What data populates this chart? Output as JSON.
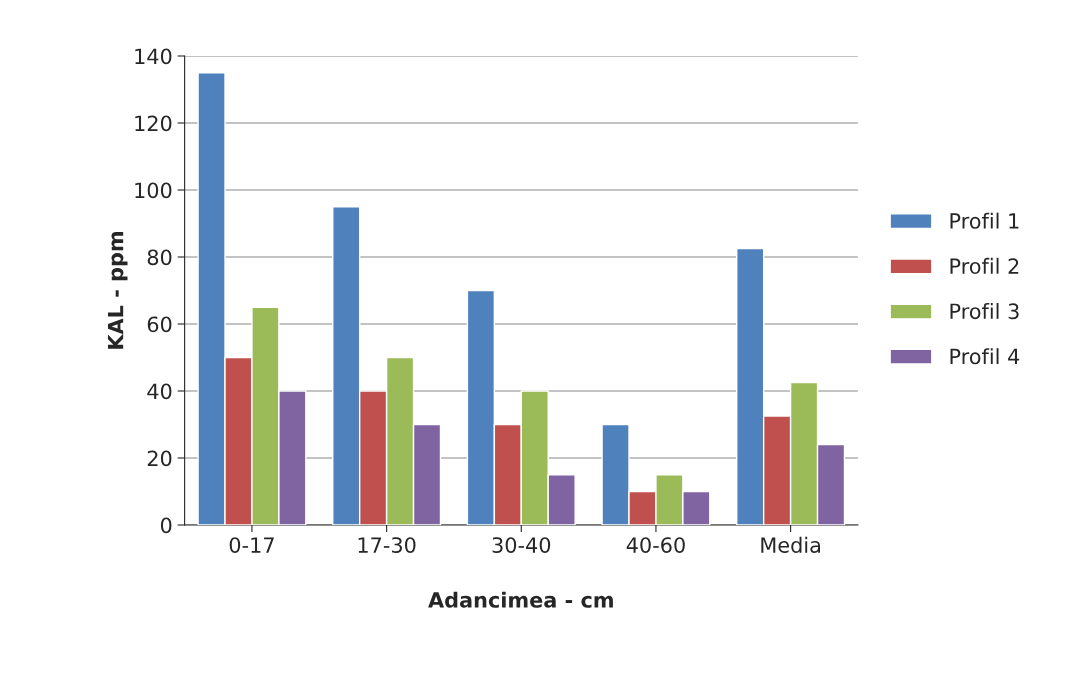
{
  "chart_data": {
    "type": "bar",
    "xlabel": "Adancimea - cm",
    "ylabel": "KAL - ppm",
    "categories": [
      "0-17",
      "17-30",
      "30-40",
      "40-60",
      "Media"
    ],
    "series": [
      {
        "name": "Profil 1",
        "color": "#4f81bd",
        "values": [
          135,
          95,
          70,
          30,
          82.5
        ]
      },
      {
        "name": "Profil 2",
        "color": "#c0504d",
        "values": [
          50,
          40,
          30,
          10,
          32.5
        ]
      },
      {
        "name": "Profil 3",
        "color": "#9bbb59",
        "values": [
          65,
          50,
          40,
          15,
          42.5
        ]
      },
      {
        "name": "Profil 4",
        "color": "#8064a2",
        "values": [
          40,
          30,
          15,
          10,
          24
        ]
      }
    ],
    "ylim": [
      0,
      140
    ],
    "yticks": [
      0,
      20,
      40,
      60,
      80,
      100,
      120,
      140
    ],
    "grid": "y",
    "legend": "right"
  }
}
